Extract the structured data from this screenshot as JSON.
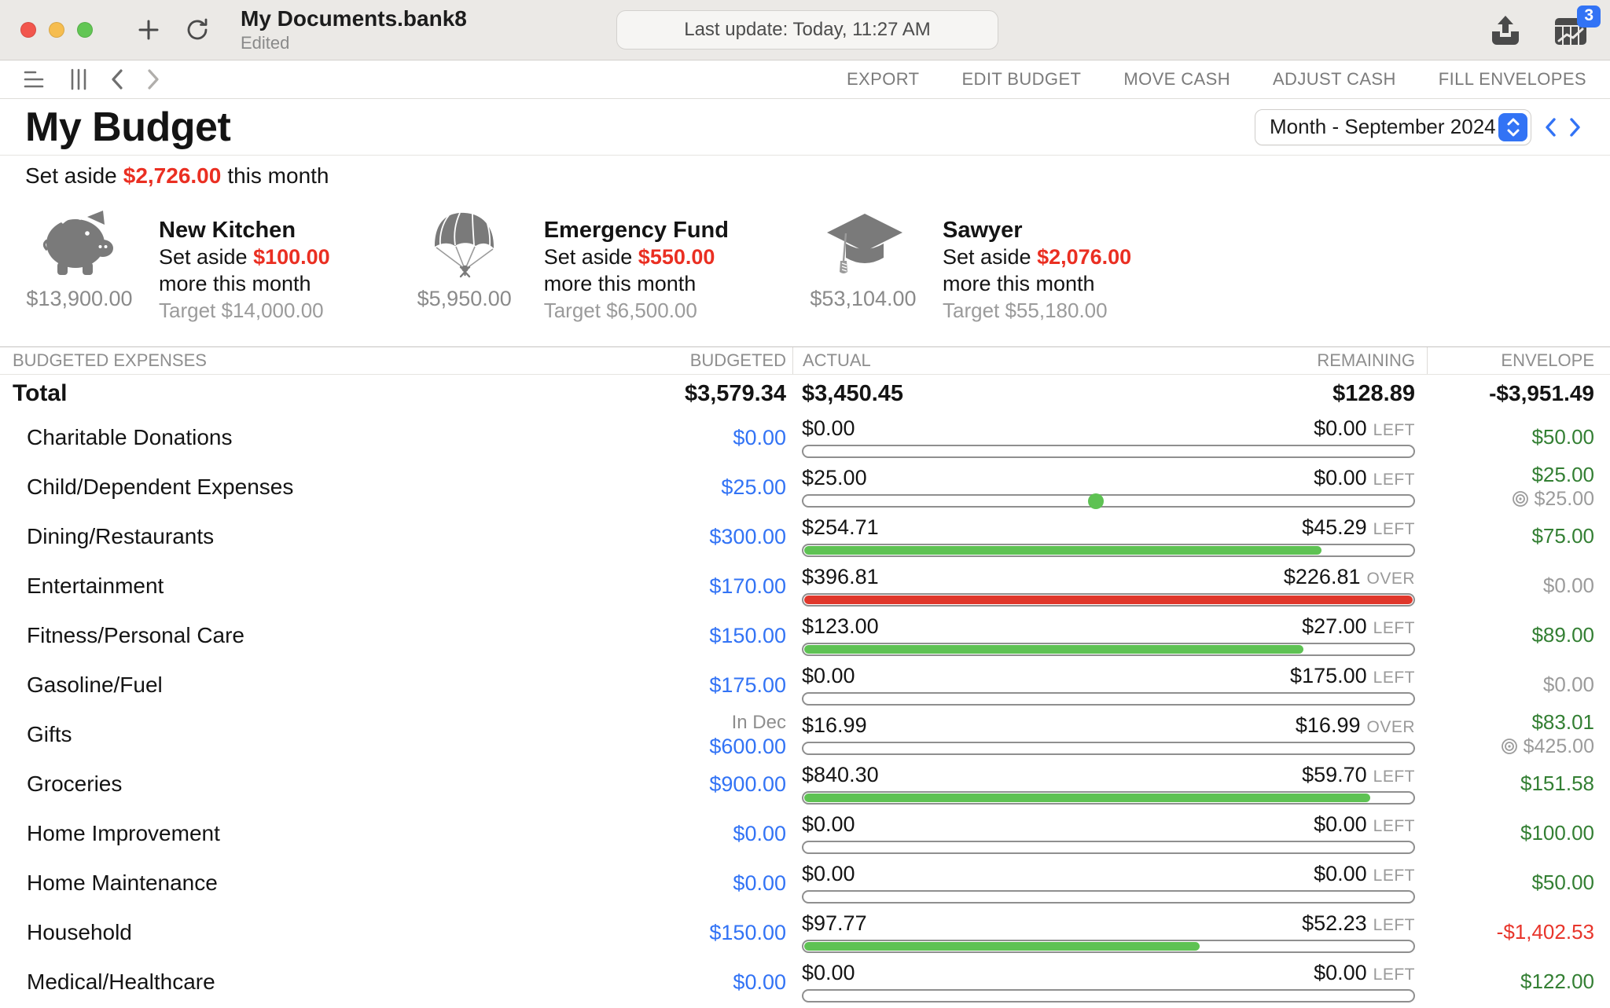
{
  "window": {
    "title": "My Documents.bank8",
    "status": "Edited",
    "last_update": "Last update: Today, 11:27 AM",
    "notification_badge": "3"
  },
  "toolbar": {
    "actions": [
      "EXPORT",
      "EDIT BUDGET",
      "MOVE CASH",
      "ADJUST CASH",
      "FILL ENVELOPES"
    ]
  },
  "budget_header": {
    "title": "My Budget",
    "period": "Month - September 2024",
    "set_aside_label": "Set aside",
    "set_aside_amount": "$2,726.00",
    "set_aside_suffix": "this month"
  },
  "goals": [
    {
      "icon": "piggy-bank",
      "balance": "$13,900.00",
      "name": "New Kitchen",
      "set_aside_label": "Set aside",
      "set_aside_amount": "$100.00",
      "set_aside_more": "more this month",
      "target": "Target $14,000.00"
    },
    {
      "icon": "parachute",
      "balance": "$5,950.00",
      "name": "Emergency Fund",
      "set_aside_label": "Set aside",
      "set_aside_amount": "$550.00",
      "set_aside_more": "more this month",
      "target": "Target $6,500.00"
    },
    {
      "icon": "graduation-cap",
      "balance": "$53,104.00",
      "name": "Sawyer",
      "set_aside_label": "Set aside",
      "set_aside_amount": "$2,076.00",
      "set_aside_more": "more this month",
      "target": "Target $55,180.00"
    }
  ],
  "table": {
    "headers": {
      "expenses": "BUDGETED EXPENSES",
      "budgeted": "BUDGETED",
      "actual": "ACTUAL",
      "remaining": "REMAINING",
      "envelope": "ENVELOPE"
    },
    "total": {
      "name": "Total",
      "budgeted": "$3,579.34",
      "actual": "$3,450.45",
      "remaining": "$128.89",
      "envelope": "-$3,951.49"
    },
    "rows": [
      {
        "name": "Charitable Donations",
        "budgeted": "$0.00",
        "actual": "$0.00",
        "remaining": "$0.00",
        "remaining_label": "LEFT",
        "fill_pct": 0,
        "bar_color": "green",
        "envelope": "$50.00",
        "envelope_color": "green"
      },
      {
        "name": "Child/Dependent Expenses",
        "budgeted": "$25.00",
        "actual": "$25.00",
        "remaining": "$0.00",
        "remaining_label": "LEFT",
        "fill_pct": 0,
        "marker_pct": 48,
        "bar_color": "green",
        "envelope": "$25.00",
        "envelope_color": "green",
        "envelope_target": "$25.00"
      },
      {
        "name": "Dining/Restaurants",
        "budgeted": "$300.00",
        "actual": "$254.71",
        "remaining": "$45.29",
        "remaining_label": "LEFT",
        "fill_pct": 85,
        "bar_color": "green",
        "envelope": "$75.00",
        "envelope_color": "green"
      },
      {
        "name": "Entertainment",
        "budgeted": "$170.00",
        "actual": "$396.81",
        "remaining": "$226.81",
        "remaining_label": "OVER",
        "fill_pct": 100,
        "bar_color": "red",
        "envelope": "$0.00",
        "envelope_color": "gray"
      },
      {
        "name": "Fitness/Personal Care",
        "budgeted": "$150.00",
        "actual": "$123.00",
        "remaining": "$27.00",
        "remaining_label": "LEFT",
        "fill_pct": 82,
        "bar_color": "green",
        "envelope": "$89.00",
        "envelope_color": "green"
      },
      {
        "name": "Gasoline/Fuel",
        "budgeted": "$175.00",
        "actual": "$0.00",
        "remaining": "$175.00",
        "remaining_label": "LEFT",
        "fill_pct": 0,
        "bar_color": "green",
        "envelope": "$0.00",
        "envelope_color": "gray"
      },
      {
        "name": "Gifts",
        "budgeted": "$600.00",
        "budgeted_note": "In Dec",
        "actual": "$16.99",
        "remaining": "$16.99",
        "remaining_label": "OVER",
        "fill_pct": 0,
        "bar_color": "green",
        "envelope": "$83.01",
        "envelope_color": "green",
        "envelope_target": "$425.00"
      },
      {
        "name": "Groceries",
        "budgeted": "$900.00",
        "actual": "$840.30",
        "remaining": "$59.70",
        "remaining_label": "LEFT",
        "fill_pct": 93,
        "bar_color": "green",
        "envelope": "$151.58",
        "envelope_color": "green"
      },
      {
        "name": "Home Improvement",
        "budgeted": "$0.00",
        "actual": "$0.00",
        "remaining": "$0.00",
        "remaining_label": "LEFT",
        "fill_pct": 0,
        "bar_color": "green",
        "envelope": "$100.00",
        "envelope_color": "green"
      },
      {
        "name": "Home Maintenance",
        "budgeted": "$0.00",
        "actual": "$0.00",
        "remaining": "$0.00",
        "remaining_label": "LEFT",
        "fill_pct": 0,
        "bar_color": "green",
        "envelope": "$50.00",
        "envelope_color": "green"
      },
      {
        "name": "Household",
        "budgeted": "$150.00",
        "actual": "$97.77",
        "remaining": "$52.23",
        "remaining_label": "LEFT",
        "fill_pct": 65,
        "bar_color": "green",
        "envelope": "-$1,402.53",
        "envelope_color": "red"
      },
      {
        "name": "Medical/Healthcare",
        "budgeted": "$0.00",
        "actual": "$0.00",
        "remaining": "$0.00",
        "remaining_label": "LEFT",
        "fill_pct": 0,
        "bar_color": "green",
        "envelope": "$122.00",
        "envelope_color": "green"
      }
    ]
  },
  "colors": {
    "accent_blue": "#3273f5",
    "red": "#ea2f22",
    "bar_green": "#5ec253",
    "bar_red": "#e0372b",
    "envelope_green": "#337f33",
    "envelope_gray": "#9b9b9b",
    "envelope_red": "#e8352b",
    "traffic_red": "#f2564d",
    "traffic_yellow": "#f6bd4f",
    "traffic_green": "#62c654"
  }
}
